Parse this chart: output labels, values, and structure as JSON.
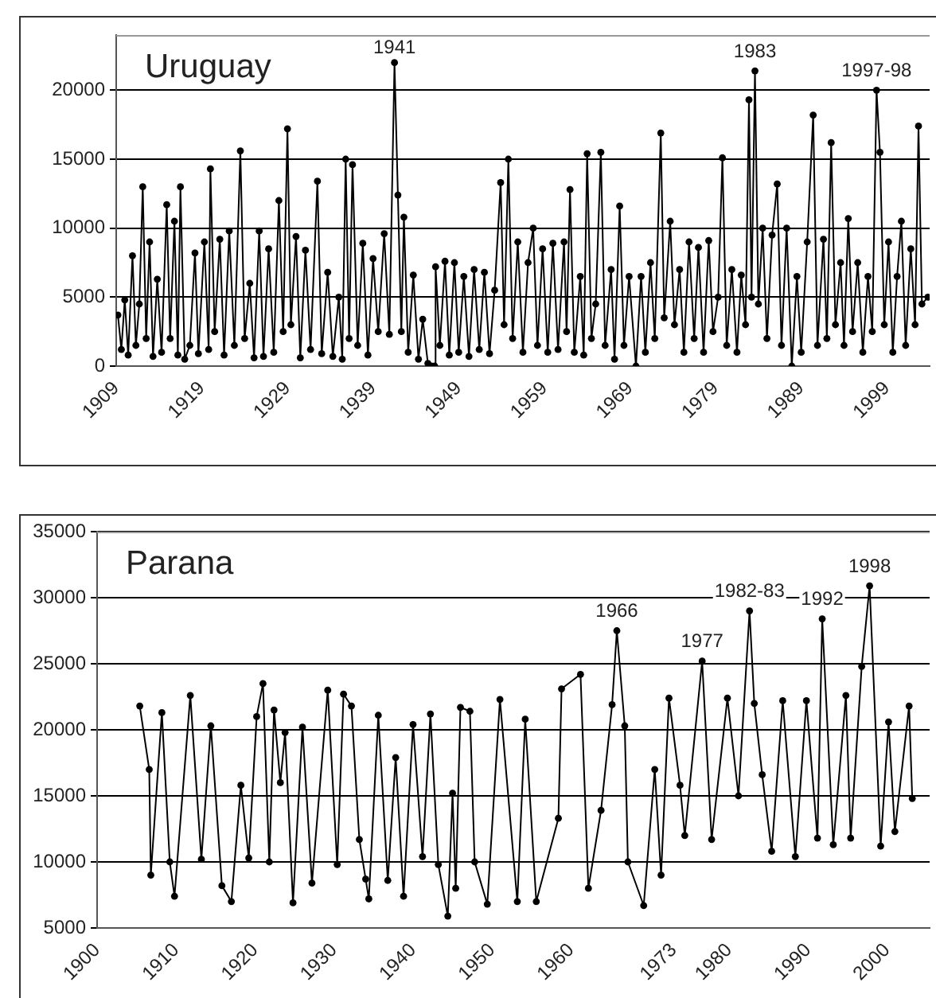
{
  "chart_data": [
    {
      "type": "line",
      "title": "Uruguay",
      "color": "#000000",
      "marker": "circle",
      "grid": "y",
      "xlim": [
        1909,
        2004
      ],
      "xticks": [
        1909,
        1919,
        1929,
        1939,
        1949,
        1959,
        1969,
        1979,
        1989,
        1999
      ],
      "ylim": [
        0,
        24000
      ],
      "yticks": [
        0,
        5000,
        10000,
        15000,
        20000
      ],
      "annotations": [
        {
          "text": "1941",
          "x": 1941.5,
          "y": 22000
        },
        {
          "text": "1983",
          "x": 1983.6,
          "y": 21400
        },
        {
          "text": "1997-98",
          "x": 1997.8,
          "y": 20000
        }
      ],
      "x": [
        1909.2,
        1909.6,
        1910.0,
        1910.4,
        1910.9,
        1911.3,
        1911.7,
        1912.1,
        1912.5,
        1912.9,
        1913.3,
        1913.8,
        1914.3,
        1914.9,
        1915.3,
        1915.8,
        1916.2,
        1916.5,
        1917.0,
        1917.6,
        1918.2,
        1918.6,
        1919.3,
        1919.8,
        1920.0,
        1920.5,
        1921.1,
        1921.6,
        1922.2,
        1922.8,
        1923.5,
        1924.0,
        1924.6,
        1925.1,
        1925.7,
        1926.2,
        1926.8,
        1927.4,
        1928.0,
        1928.5,
        1929.0,
        1929.4,
        1930.0,
        1930.5,
        1931.1,
        1931.7,
        1932.5,
        1933.0,
        1933.7,
        1934.3,
        1935.0,
        1935.4,
        1935.8,
        1936.2,
        1936.6,
        1937.2,
        1937.8,
        1938.4,
        1939.0,
        1939.6,
        1940.3,
        1940.9,
        1941.5,
        1941.9,
        1942.3,
        1942.6,
        1943.1,
        1943.7,
        1944.3,
        1944.8,
        1945.4,
        1945.8,
        1946.2,
        1946.3,
        1946.8,
        1947.4,
        1947.9,
        1948.5,
        1949.0,
        1949.6,
        1950.2,
        1950.8,
        1951.4,
        1952.0,
        1952.6,
        1953.2,
        1953.9,
        1954.3,
        1954.8,
        1955.3,
        1955.9,
        1956.5,
        1957.1,
        1957.7,
        1958.2,
        1958.8,
        1959.4,
        1960.0,
        1960.6,
        1961.3,
        1961.6,
        1962.0,
        1962.5,
        1963.2,
        1963.6,
        1964.0,
        1964.5,
        1965.0,
        1965.6,
        1966.1,
        1966.8,
        1967.2,
        1967.8,
        1968.3,
        1968.9,
        1969.7,
        1970.3,
        1970.8,
        1971.4,
        1971.9,
        1972.6,
        1973.0,
        1973.7,
        1974.2,
        1974.8,
        1975.3,
        1975.9,
        1976.5,
        1977.0,
        1977.6,
        1978.2,
        1978.7,
        1979.3,
        1979.8,
        1980.3,
        1980.9,
        1981.5,
        1982.0,
        1982.5,
        1982.9,
        1983.2,
        1983.6,
        1984.0,
        1984.5,
        1985.0,
        1985.6,
        1986.2,
        1986.7,
        1987.3,
        1987.9,
        1988.5,
        1989.0,
        1989.7,
        1990.4,
        1990.9,
        1991.6,
        1992.0,
        1992.5,
        1993.0,
        1993.6,
        1994.0,
        1994.5,
        1995.0,
        1995.6,
        1996.2,
        1996.8,
        1997.3,
        1997.8,
        1998.2,
        1998.7,
        1999.2,
        1999.7,
        2000.2,
        2000.7,
        2001.2,
        2001.8,
        2002.3,
        2002.7,
        2003.1,
        2003.8
      ],
      "values": [
        3700,
        1200,
        4800,
        800,
        8000,
        1500,
        4500,
        13000,
        2000,
        9000,
        700,
        6300,
        1000,
        11700,
        2000,
        10500,
        800,
        13000,
        500,
        1500,
        8200,
        900,
        9000,
        1200,
        14300,
        2500,
        9200,
        800,
        9800,
        1500,
        15600,
        2000,
        6000,
        600,
        9800,
        700,
        8500,
        1000,
        12000,
        2500,
        17200,
        3000,
        9400,
        600,
        8400,
        1200,
        13400,
        900,
        6800,
        700,
        5000,
        500,
        15000,
        2000,
        14600,
        1500,
        8900,
        800,
        7800,
        2500,
        9600,
        2300,
        22000,
        12400,
        2500,
        10800,
        1000,
        6600,
        500,
        3400,
        200,
        0,
        0,
        7200,
        1500,
        7600,
        800,
        7500,
        1000,
        6500,
        700,
        7000,
        1200,
        6800,
        900,
        5500,
        13300,
        3000,
        15000,
        2000,
        9000,
        1000,
        7500,
        10000,
        1500,
        8500,
        1000,
        8900,
        1200,
        9000,
        2500,
        12800,
        1000,
        6500,
        800,
        15400,
        2000,
        4500,
        15500,
        1500,
        7000,
        500,
        11600,
        1500,
        6500,
        0,
        6500,
        1000,
        7500,
        2000,
        16900,
        3500,
        10500,
        3000,
        7000,
        1000,
        9000,
        2000,
        8600,
        1000,
        9100,
        2500,
        5000,
        15100,
        1500,
        7000,
        1000,
        6600,
        3000,
        19300,
        5000,
        21400,
        4500,
        10000,
        2000,
        9500,
        13200,
        1500,
        10000,
        0,
        6500,
        1000,
        9000,
        18200,
        1500,
        9200,
        2000,
        16200,
        3000,
        7500,
        1500,
        10700,
        2500,
        7500,
        1000,
        6500,
        2500,
        20000,
        15500,
        3000,
        9000,
        1000,
        6500,
        10500,
        1500,
        8500,
        3000,
        17400,
        4500,
        5000
      ]
    },
    {
      "type": "line",
      "title": "Parana",
      "color": "#000000",
      "marker": "circle",
      "grid": "y",
      "xlim": [
        1900,
        2005.4
      ],
      "xticks": [
        1900,
        1910,
        1920,
        1930,
        1940,
        1950,
        1960,
        1973,
        1980,
        1990,
        2000
      ],
      "ylim": [
        5000,
        35000
      ],
      "yticks": [
        5000,
        10000,
        15000,
        20000,
        25000,
        30000,
        35000
      ],
      "annotations": [
        {
          "text": "1966",
          "x": 1965.8,
          "y": 27500
        },
        {
          "text": "1977",
          "x": 1976.6,
          "y": 25200
        },
        {
          "text": "1982-83",
          "x": 1982.6,
          "y": 29000
        },
        {
          "text": "1992",
          "x": 1991.8,
          "y": 28400
        },
        {
          "text": "1998",
          "x": 1997.8,
          "y": 30900
        }
      ],
      "x": [
        1905.4,
        1906.6,
        1906.8,
        1908.2,
        1909.2,
        1909.8,
        1911.8,
        1913.2,
        1914.4,
        1915.8,
        1917.0,
        1918.2,
        1919.2,
        1920.2,
        1921.0,
        1921.8,
        1922.4,
        1923.2,
        1923.8,
        1924.8,
        1926.0,
        1927.2,
        1929.2,
        1930.4,
        1931.2,
        1932.2,
        1933.2,
        1934.0,
        1934.4,
        1935.6,
        1936.8,
        1937.8,
        1938.8,
        1940.0,
        1941.2,
        1942.2,
        1943.2,
        1944.4,
        1945.0,
        1945.4,
        1946.0,
        1947.2,
        1947.8,
        1949.4,
        1951.0,
        1953.2,
        1954.2,
        1955.6,
        1958.4,
        1958.8,
        1961.2,
        1962.2,
        1963.8,
        1965.2,
        1965.8,
        1966.8,
        1967.2,
        1969.2,
        1970.6,
        1971.4,
        1972.4,
        1973.8,
        1974.4,
        1976.6,
        1977.8,
        1979.8,
        1981.2,
        1982.6,
        1983.2,
        1984.2,
        1985.4,
        1986.8,
        1988.4,
        1989.8,
        1991.2,
        1991.8,
        1993.2,
        1994.8,
        1995.4,
        1996.8,
        1997.8,
        1999.2,
        2000.2,
        2001.0,
        2002.8,
        2003.2
      ],
      "values": [
        21800,
        17000,
        9000,
        21300,
        10000,
        7400,
        22600,
        10200,
        20300,
        8200,
        7000,
        15800,
        10300,
        21000,
        23500,
        10000,
        21500,
        16000,
        19800,
        6900,
        20200,
        8400,
        23000,
        9800,
        22700,
        21800,
        11700,
        8700,
        7200,
        21100,
        8600,
        17900,
        7400,
        20400,
        10400,
        21200,
        9800,
        5900,
        15200,
        8000,
        21700,
        21400,
        10000,
        6800,
        22300,
        7000,
        20800,
        7000,
        13300,
        23100,
        24200,
        8000,
        13900,
        21900,
        27500,
        20300,
        10000,
        6700,
        17000,
        9000,
        22400,
        15800,
        12000,
        25200,
        11700,
        22400,
        15000,
        29000,
        22000,
        16600,
        10800,
        22200,
        10400,
        22200,
        11800,
        28400,
        11300,
        22600,
        11800,
        24800,
        30900,
        11200,
        20600,
        12300,
        21800,
        14800
      ]
    }
  ]
}
